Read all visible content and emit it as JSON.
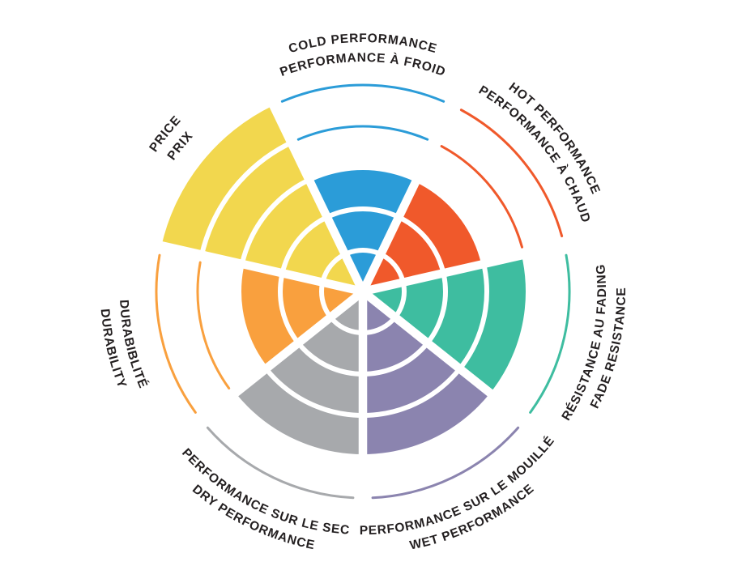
{
  "chart_data": {
    "type": "pie",
    "subtype": "radial-sector-fill-wheel",
    "rings": 5,
    "values_scale": "0-5 rings filled per sector",
    "background_color": "#FFFFFF",
    "separator_color": "#FFFFFF",
    "text_color": "#231F20",
    "sectors": [
      {
        "id": "cold",
        "label_en": "COLD PERFORMANCE",
        "label_fr": "PERFORMANCE À FROID",
        "value": 3,
        "color": "#2B9CD8",
        "flipped": false
      },
      {
        "id": "hot",
        "label_en": "HOT PERFORMANCE",
        "label_fr": "PERFORMANCE À CHAUD",
        "value": 3,
        "color": "#F0592B",
        "flipped": false
      },
      {
        "id": "fade",
        "label_en": "FADE RESISTANCE",
        "label_fr": "RÉSISTANCE AU FADING",
        "value": 4,
        "color": "#3EBDA0",
        "flipped": true
      },
      {
        "id": "wet",
        "label_en": "WET PERFORMANCE",
        "label_fr": "PERFORMANCE SUR LE MOUILLÉ",
        "value": 4,
        "color": "#8B84AF",
        "flipped": true
      },
      {
        "id": "dry",
        "label_en": "DRY PERFORMANCE",
        "label_fr": "PERFORMANCE SUR LE SEC",
        "value": 4,
        "color": "#A7A9AC",
        "flipped": true
      },
      {
        "id": "durability",
        "label_en": "DURABILITY",
        "label_fr": "DURABIBLITÉ",
        "value": 3,
        "color": "#F9A03E",
        "flipped": true
      },
      {
        "id": "price",
        "label_en": "PRICE",
        "label_fr": "PRIX",
        "value": 5,
        "color": "#F2D74E",
        "flipped": false
      }
    ]
  }
}
